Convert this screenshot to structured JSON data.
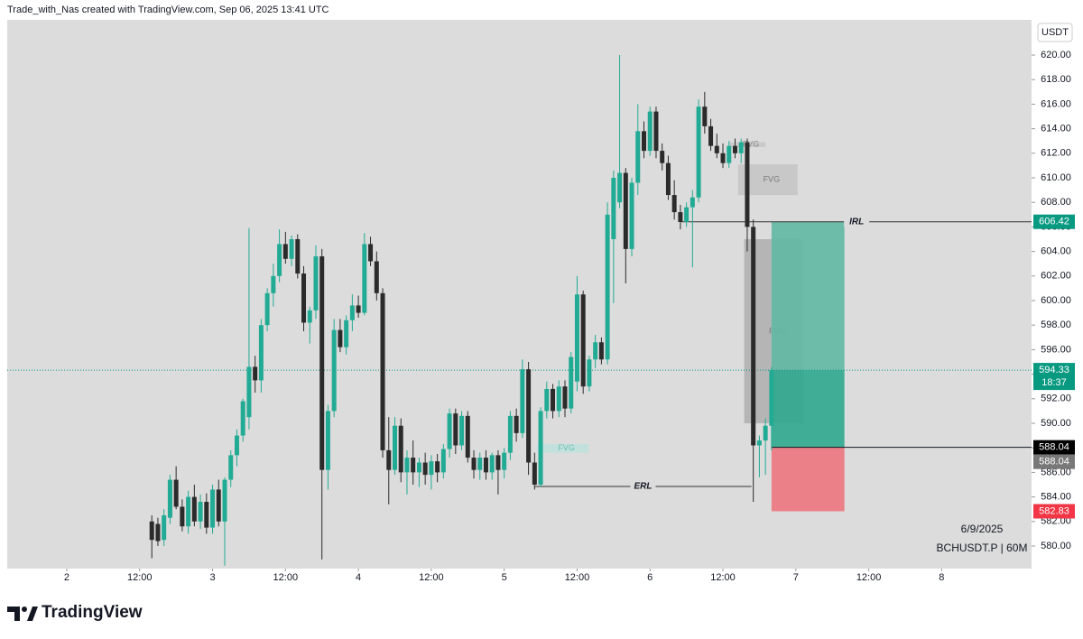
{
  "header": "Trade_with_Nas created with TradingView.com, Sep 06, 2025 13:41 UTC",
  "logo": "TradingView",
  "chart_data": {
    "type": "candlestick",
    "currency": "USDT",
    "date_label": "6/9/2025",
    "symbol_label": "BCHUSDT.P | 60M",
    "countdown": "18:37",
    "up_color": "#22ab94",
    "down_color": "#2b2b2b",
    "x": [
      14,
      15,
      16,
      17,
      18,
      19,
      20,
      21,
      22,
      23,
      24,
      25,
      26,
      27,
      28,
      29,
      30,
      31,
      32,
      33,
      34,
      35,
      36,
      37,
      38,
      39,
      40,
      41,
      42,
      43,
      44,
      45,
      46,
      47,
      48,
      49,
      50,
      51,
      52,
      53,
      54,
      55,
      56,
      57,
      58,
      59,
      60,
      61,
      62,
      63,
      64,
      65,
      66,
      67,
      68,
      69,
      70,
      71,
      72,
      73,
      74,
      75,
      76,
      77,
      78,
      79,
      80,
      81,
      82,
      83,
      84,
      85,
      86,
      87,
      88,
      89,
      90,
      91,
      92,
      93,
      94,
      95,
      96,
      97,
      98,
      99,
      100,
      101,
      102,
      103,
      104,
      105,
      106,
      107,
      108,
      109,
      110,
      111,
      112,
      113,
      114,
      115,
      116
    ],
    "open": [
      582,
      581.8,
      580.5,
      582.3,
      585.4,
      583.2,
      581.6,
      584,
      582,
      583.6,
      581.5,
      584.6,
      582,
      585.4,
      587.4,
      589,
      590.5,
      594.6,
      593.5,
      598,
      600.6,
      602,
      604.6,
      603.4,
      605,
      602.2,
      598.2,
      599.2,
      603.6,
      586.2,
      591,
      597.6,
      596.2,
      598.4,
      599.6,
      599,
      604.6,
      603.2,
      600.6,
      587.8,
      586.2,
      589.8,
      586,
      587.2,
      586,
      586.8,
      585.8,
      586.9,
      586,
      587.9,
      590.8,
      588.2,
      590.6,
      587.2,
      586.2,
      587.2,
      586,
      587.4,
      586.2,
      587.6,
      590.6,
      589.2,
      594.4,
      586.8,
      585,
      591,
      592.8,
      591,
      593,
      591.2,
      593.4,
      600.5,
      593,
      595.2,
      596.6,
      595.2,
      605,
      608,
      610.4,
      604.2,
      609.6,
      613.8,
      612.2,
      615.4,
      612.2,
      611.2,
      608.6,
      607.2,
      606.4,
      607.6,
      608.4,
      615.8,
      614.2,
      612.6,
      612,
      611.2,
      612.6,
      612,
      612.9,
      606,
      588.2,
      588.6,
      589.8
    ],
    "high": [
      582.5,
      582.3,
      583,
      585.8,
      586.5,
      583.8,
      584.5,
      585,
      584.2,
      584.3,
      585,
      585.4,
      585.6,
      587.8,
      589.5,
      592,
      605.9,
      595.5,
      598.5,
      601,
      603,
      605.8,
      605.6,
      605.3,
      605.4,
      602.8,
      599.5,
      604.5,
      604.2,
      591.5,
      598.5,
      598.5,
      598.8,
      600.5,
      600.4,
      605.5,
      605.2,
      604,
      601,
      590.5,
      590.5,
      590.4,
      587.8,
      588.6,
      587.2,
      587.6,
      587.4,
      587.5,
      588.3,
      591.2,
      591.2,
      591,
      591,
      587.8,
      587.6,
      587.8,
      587.6,
      587.8,
      588,
      591,
      591.2,
      595.2,
      595,
      587.6,
      591.3,
      593.4,
      593.2,
      593.5,
      593.5,
      595.8,
      602,
      600.8,
      595.5,
      597.2,
      597,
      608,
      610.6,
      620,
      610.8,
      610,
      616,
      614.6,
      615.8,
      615.8,
      612.8,
      611.8,
      609.8,
      607.8,
      608,
      609,
      616.4,
      617,
      614.8,
      613.6,
      612.8,
      613,
      613.2,
      613.2,
      613.2,
      606.6,
      589,
      590.4,
      594.6
    ],
    "low": [
      579,
      580,
      580,
      581.8,
      583,
      581.2,
      581,
      581.6,
      581.4,
      581,
      581,
      581.6,
      578.4,
      584.8,
      586.5,
      588.5,
      589.5,
      592.5,
      592.5,
      597.5,
      599.5,
      601.5,
      603,
      602.8,
      601.8,
      597.5,
      596.5,
      598.5,
      578.9,
      584.6,
      590.5,
      595.8,
      595.6,
      597.5,
      598.6,
      598.8,
      602.8,
      600,
      587.2,
      583.4,
      585.8,
      585.2,
      584.2,
      585,
      584.8,
      585,
      584.6,
      585.2,
      585.5,
      587.2,
      587.5,
      587.8,
      586.8,
      585.5,
      585.4,
      585.4,
      585.4,
      584.2,
      585.5,
      587,
      588.5,
      588.8,
      585.8,
      584.6,
      584.8,
      590.4,
      590.4,
      590.5,
      590.5,
      590.8,
      592.6,
      592.4,
      592.6,
      594.5,
      594.8,
      594.8,
      599.8,
      607.5,
      601.4,
      603.6,
      608.6,
      611.6,
      611.8,
      611.6,
      610.6,
      608.2,
      606.6,
      605.8,
      606,
      602.7,
      608,
      613.6,
      612.2,
      611.6,
      610.8,
      610.8,
      611.6,
      611.2,
      604,
      583.6,
      585.6,
      585.8,
      587.8
    ],
    "close": [
      580.5,
      580.4,
      582.5,
      585.4,
      583.2,
      581.6,
      584,
      582,
      583.6,
      581.5,
      584.6,
      582,
      585.4,
      587.4,
      589,
      591.8,
      594.6,
      593.5,
      598,
      600.6,
      602,
      604.6,
      603.4,
      605,
      602.2,
      598.2,
      599.2,
      603.6,
      586.2,
      591,
      597.6,
      596.2,
      598.4,
      599.6,
      599,
      604.6,
      603.2,
      600.6,
      587.8,
      586.2,
      589.8,
      586,
      587.2,
      586,
      586.8,
      585.8,
      586.9,
      586,
      587.9,
      590.8,
      588.2,
      590.6,
      587.2,
      586.2,
      587.2,
      586,
      587.4,
      586.2,
      587.6,
      590.6,
      589.2,
      594.4,
      586.8,
      585,
      591,
      592.8,
      591,
      593,
      591.2,
      595.4,
      600.5,
      593,
      595.2,
      596.6,
      595.2,
      607,
      610,
      610.4,
      604.2,
      609.6,
      613.8,
      612.2,
      615.4,
      612.2,
      611.2,
      608.6,
      607.2,
      606.4,
      607.6,
      608.4,
      615.8,
      614.2,
      612.6,
      612,
      611.2,
      612.6,
      612,
      612.9,
      606,
      588.2,
      588.6,
      589.8,
      594.33
    ],
    "xlim": [
      -9.8,
      158.8
    ],
    "xticks": [
      {
        "value": 0,
        "label": "2"
      },
      {
        "value": 12,
        "label": "12:00"
      },
      {
        "value": 24,
        "label": "3"
      },
      {
        "value": 36,
        "label": "12:00"
      },
      {
        "value": 48,
        "label": "4"
      },
      {
        "value": 60,
        "label": "12:00"
      },
      {
        "value": 72,
        "label": "5"
      },
      {
        "value": 84,
        "label": "12:00"
      },
      {
        "value": 96,
        "label": "6"
      },
      {
        "value": 108,
        "label": "12:00"
      },
      {
        "value": 120,
        "label": "7"
      },
      {
        "value": 132,
        "label": "12:00"
      },
      {
        "value": 144,
        "label": "8"
      }
    ],
    "ylim": [
      578.16,
      622.87
    ],
    "yticks": [
      {
        "value": 580,
        "label": "580.00"
      },
      {
        "value": 582,
        "label": "582.00"
      },
      {
        "value": 584,
        "label": "584.00"
      },
      {
        "value": 586,
        "label": "586.00"
      },
      {
        "value": 588,
        "label": "588.00"
      },
      {
        "value": 590,
        "label": "590.00"
      },
      {
        "value": 592,
        "label": "592.00"
      },
      {
        "value": 594,
        "label": "594.00"
      },
      {
        "value": 596,
        "label": "596.00"
      },
      {
        "value": 598,
        "label": "598.00"
      },
      {
        "value": 600,
        "label": "600.00"
      },
      {
        "value": 602,
        "label": "602.00"
      },
      {
        "value": 604,
        "label": "604.00"
      },
      {
        "value": 606,
        "label": "606.00"
      },
      {
        "value": 608,
        "label": "608.00"
      },
      {
        "value": 610,
        "label": "610.00"
      },
      {
        "value": 612,
        "label": "612.00"
      },
      {
        "value": 614,
        "label": "614.00"
      },
      {
        "value": 616,
        "label": "616.00"
      },
      {
        "value": 618,
        "label": "618.00"
      },
      {
        "value": 620,
        "label": "620.00"
      }
    ],
    "price_labels": [
      {
        "value": 606.42,
        "color": "#089981"
      },
      {
        "value": 594.33,
        "color": "#089981"
      },
      {
        "value": 588.04,
        "color": "#000000"
      },
      {
        "value": 588.04,
        "color": "#787878"
      },
      {
        "value": 582.83,
        "color": "#f23645"
      }
    ],
    "levels": [
      {
        "label": "IRL",
        "value": 606.42,
        "x0": 101.2,
        "x1": 158.8
      },
      {
        "label": "ERL",
        "value": 584.85,
        "x0": 77,
        "x1": 112.7
      }
    ],
    "zones": [
      {
        "label": "FVG",
        "top": 588.3,
        "bottom": 587.6,
        "x0": 77.4,
        "x1": 85.9,
        "fill": "#b9e3dd",
        "text_color": "#6cc0b4"
      },
      {
        "label": "FVG",
        "top": 612.9,
        "bottom": 612.5,
        "x0": 109,
        "x1": 115,
        "fill": "#c4c4c4",
        "text_color": "#8a8a8a"
      },
      {
        "label": "FVG",
        "top": 611.1,
        "bottom": 608.6,
        "x0": 110.5,
        "x1": 120.3,
        "fill": "#c2c2c2",
        "text_color": "#7a7a7a"
      },
      {
        "label": "FVG",
        "top": 605,
        "bottom": 590,
        "x0": 111.5,
        "x1": 121.2,
        "fill": "#a8a8a8",
        "text_color": "#7a7a7a"
      }
    ],
    "position": {
      "x0": 116,
      "x1": 128
    }
  }
}
